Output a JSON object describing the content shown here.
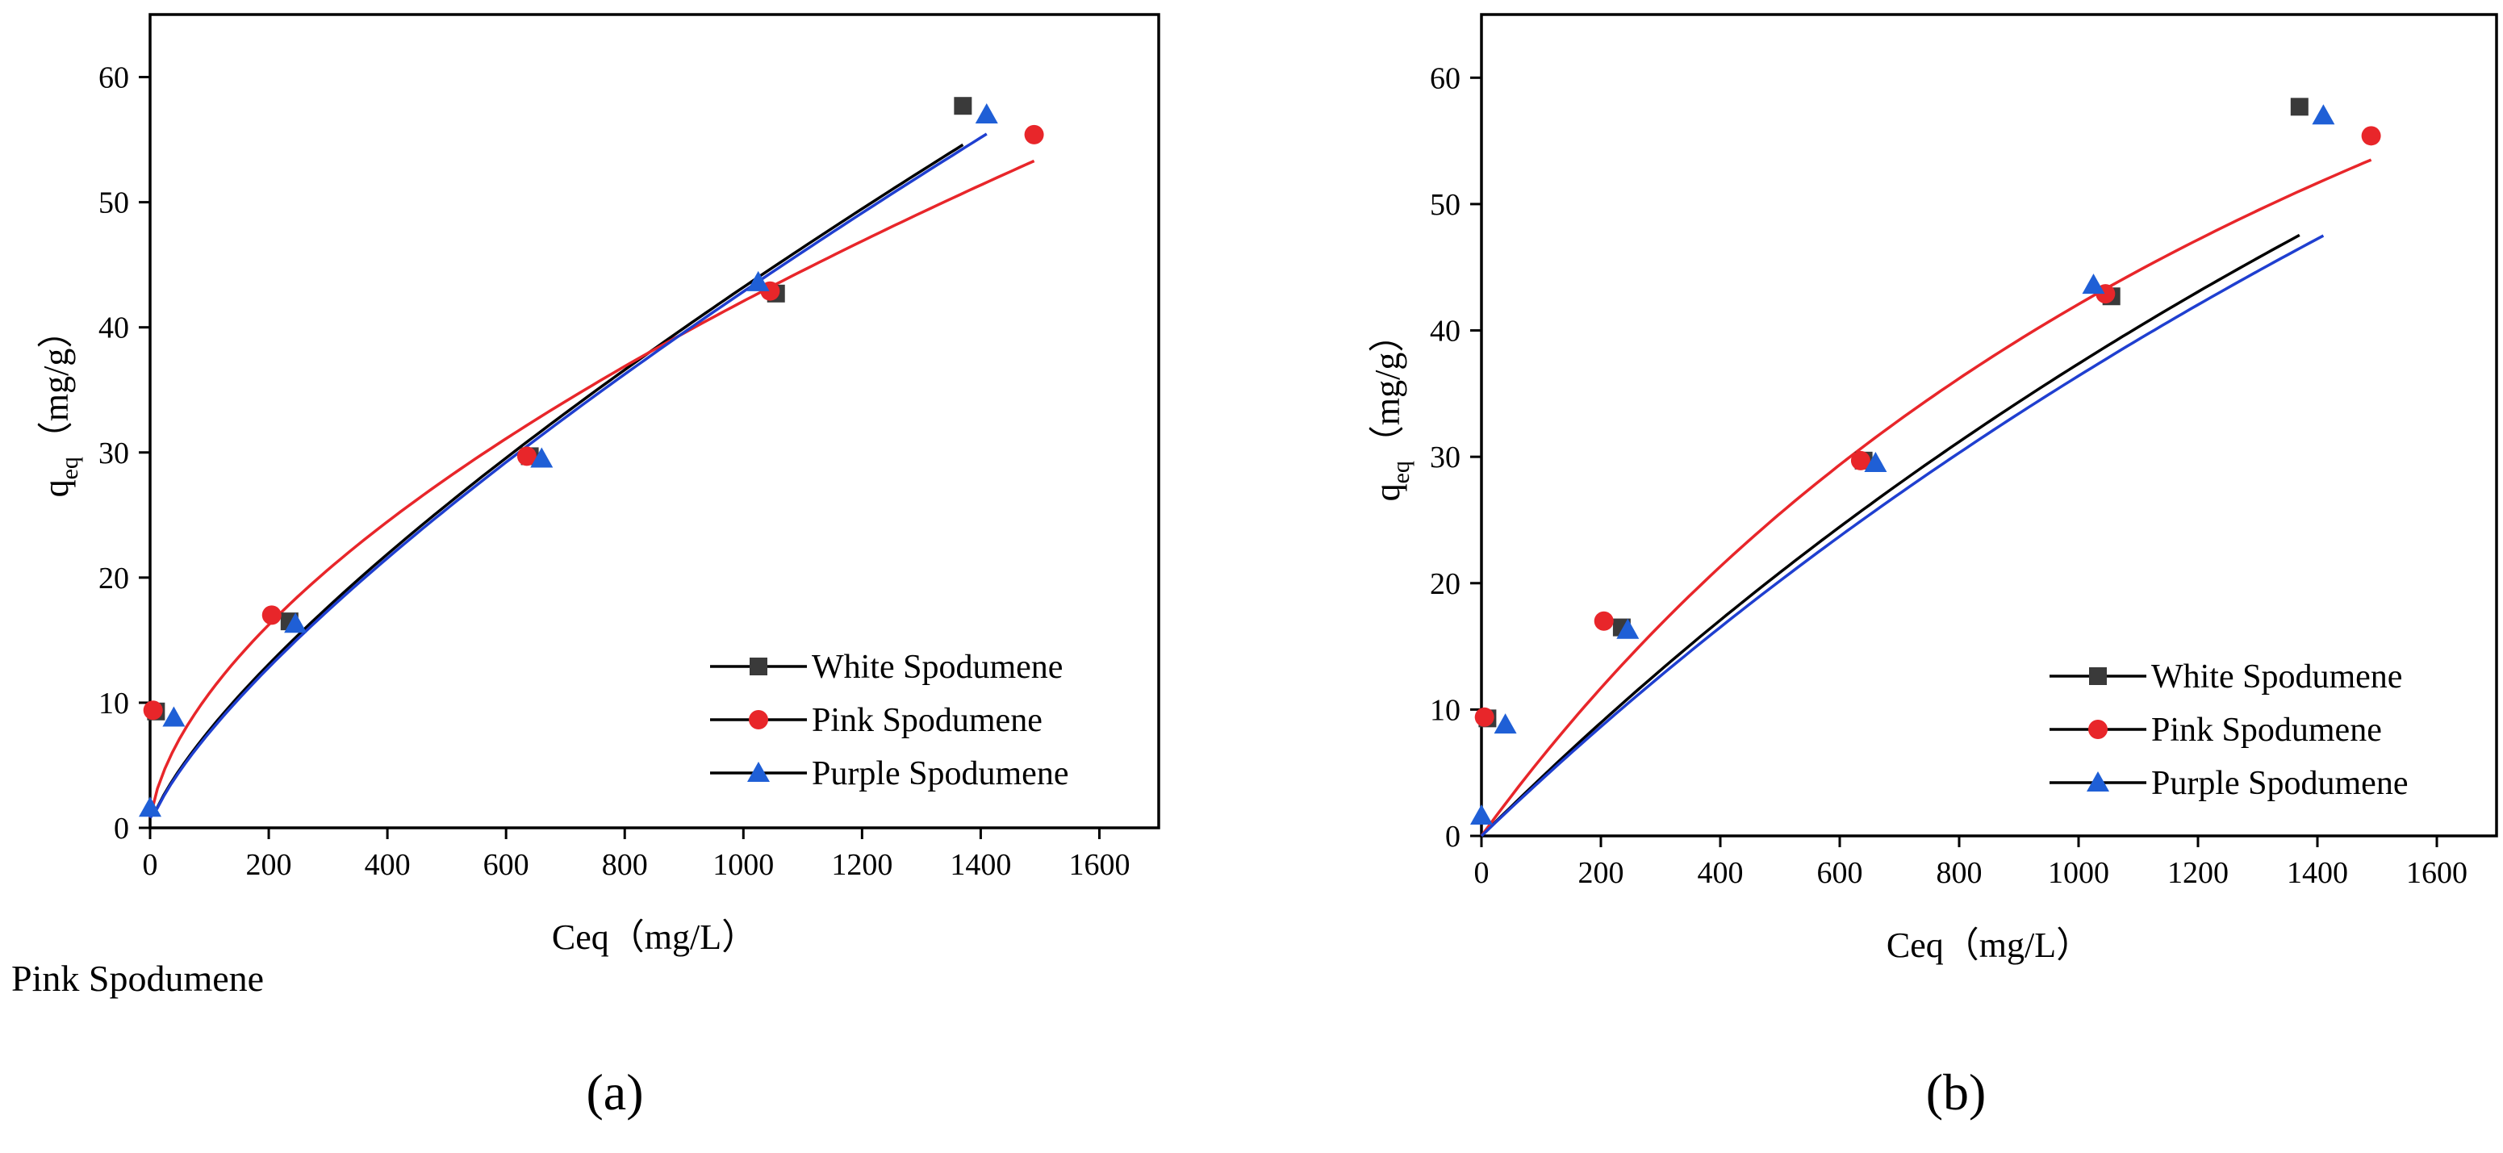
{
  "figure_labels": {
    "a": "(a)",
    "b": "(b)"
  },
  "stray_caption": "Pink Spodumene",
  "chart_data": [
    {
      "type": "scatter",
      "panel": "(a)",
      "title": "",
      "xlabel": "Ceq（mg/L）",
      "ylabel_main": "q",
      "ylabel_sub": "eq",
      "ylabel_unit": "（mg/g）",
      "xlim": [
        0,
        1700
      ],
      "ylim": [
        0,
        65
      ],
      "xticks": [
        0,
        200,
        400,
        600,
        800,
        1000,
        1200,
        1400,
        1600
      ],
      "yticks": [
        0,
        10,
        20,
        30,
        40,
        50,
        60
      ],
      "grid": false,
      "legend_position": "bottom-right",
      "series": [
        {
          "name": "White Spodumene",
          "marker": "square",
          "color": "#3a3a3a",
          "line_color": "#000000",
          "points": [
            [
              10,
              9.3
            ],
            [
              235,
              16.5
            ],
            [
              640,
              29.7
            ],
            [
              1055,
              42.7
            ],
            [
              1370,
              57.7
            ]
          ],
          "fit_x": [
            0,
            1370
          ],
          "fit_k": 0.255,
          "fit_n": 0.743
        },
        {
          "name": "Pink Spodumene",
          "marker": "circle",
          "color": "#e8262a",
          "line_color": "#e8262a",
          "points": [
            [
              5,
              9.4
            ],
            [
              205,
              17.0
            ],
            [
              635,
              29.7
            ],
            [
              1045,
              42.9
            ],
            [
              1490,
              55.4
            ]
          ],
          "fit_x": [
            0,
            1490
          ],
          "fit_k": 0.705,
          "fit_n": 0.592
        },
        {
          "name": "Purple Spodumene",
          "marker": "triangle",
          "color": "#1f5fd6",
          "line_color": "#1f3fd0",
          "points": [
            [
              0,
              1.6
            ],
            [
              40,
              8.8
            ],
            [
              245,
              16.3
            ],
            [
              660,
              29.5
            ],
            [
              1025,
              43.6
            ],
            [
              1410,
              57.0
            ]
          ],
          "fit_x": [
            0,
            1410
          ],
          "fit_k": 0.241,
          "fit_n": 0.75
        }
      ]
    },
    {
      "type": "scatter",
      "panel": "(b)",
      "title": "",
      "xlabel": "Ceq（mg/L）",
      "ylabel_main": "q",
      "ylabel_sub": "eq",
      "ylabel_unit": "（mg/g）",
      "xlim": [
        0,
        1700
      ],
      "ylim": [
        0,
        65
      ],
      "xticks": [
        0,
        200,
        400,
        600,
        800,
        1000,
        1200,
        1400,
        1600
      ],
      "yticks": [
        0,
        10,
        20,
        30,
        40,
        50,
        60
      ],
      "grid": false,
      "legend_position": "bottom-right",
      "series": [
        {
          "name": "White Spodumene",
          "marker": "square",
          "color": "#3a3a3a",
          "line_color": "#000000",
          "points": [
            [
              10,
              9.3
            ],
            [
              235,
              16.5
            ],
            [
              640,
              29.7
            ],
            [
              1055,
              42.7
            ],
            [
              1370,
              57.7
            ]
          ],
          "fit_x": [
            0,
            1370
          ],
          "fit_qm": 180,
          "fit_kl": 0.000262
        },
        {
          "name": "Pink Spodumene",
          "marker": "circle",
          "color": "#e8262a",
          "line_color": "#e8262a",
          "points": [
            [
              5,
              9.4
            ],
            [
              205,
              17.0
            ],
            [
              635,
              29.7
            ],
            [
              1045,
              42.9
            ],
            [
              1490,
              55.4
            ]
          ],
          "fit_x": [
            0,
            1490
          ],
          "fit_qm": 120,
          "fit_kl": 0.00054
        },
        {
          "name": "Purple Spodumene",
          "marker": "triangle",
          "color": "#1f5fd6",
          "line_color": "#1f3fd0",
          "points": [
            [
              0,
              1.6
            ],
            [
              40,
              8.8
            ],
            [
              245,
              16.3
            ],
            [
              660,
              29.5
            ],
            [
              1025,
              43.6
            ],
            [
              1410,
              57.0
            ]
          ],
          "fit_x": [
            0,
            1410
          ],
          "fit_qm": 185,
          "fit_kl": 0.000245
        }
      ]
    }
  ]
}
